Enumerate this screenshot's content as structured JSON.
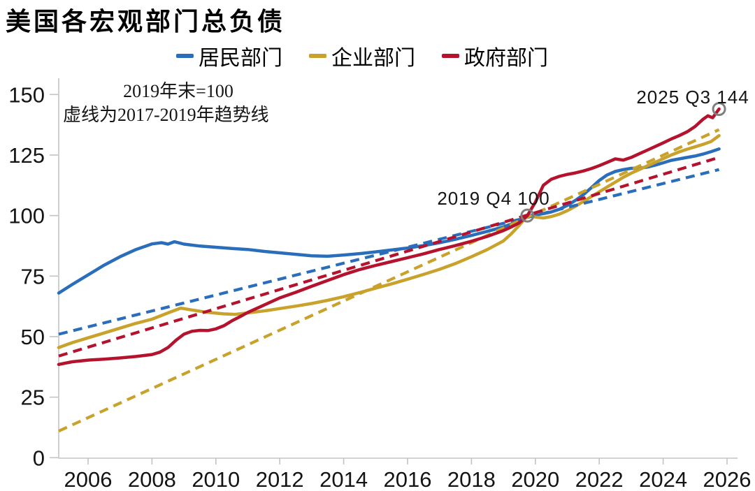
{
  "header": {
    "title": "美国各宏观部门总负债"
  },
  "legend": [
    {
      "label": "居民部门",
      "color": "#2A6EBB"
    },
    {
      "label": "企业部门",
      "color": "#C9A22B"
    },
    {
      "label": "政府部门",
      "color": "#B5122E"
    }
  ],
  "annotations": {
    "note_line1": "2019年末=100",
    "note_line2": "虚线为2017-2019年趋势线",
    "point_2019": "2019 Q4 100",
    "point_2025": "2025 Q3 144"
  },
  "chart_data": {
    "type": "line",
    "title": "美国各宏观部门总负债",
    "subtitle_notes": [
      "2019年末=100",
      "虚线为2017-2019年趋势线"
    ],
    "x_axis": {
      "ticks": [
        2006,
        2008,
        2010,
        2012,
        2014,
        2016,
        2018,
        2020,
        2022,
        2024,
        2026
      ],
      "range": [
        2005.08,
        2026.33
      ],
      "grid": false
    },
    "y_axis": {
      "ticks": [
        0,
        25,
        50,
        75,
        100,
        125,
        150
      ],
      "range": [
        0,
        150
      ],
      "grid": false
    },
    "legend_position": "top",
    "series": [
      {
        "name": "居民部门",
        "color": "#2A6EBB",
        "style": "solid",
        "points": [
          [
            2005.08,
            68
          ],
          [
            2005.5,
            71.5
          ],
          [
            2006,
            75.5
          ],
          [
            2006.5,
            79.5
          ],
          [
            2007,
            83
          ],
          [
            2007.5,
            86
          ],
          [
            2008,
            88.3
          ],
          [
            2008.3,
            88.8
          ],
          [
            2008.5,
            88.2
          ],
          [
            2008.7,
            89.2
          ],
          [
            2009,
            88.2
          ],
          [
            2009.5,
            87.4
          ],
          [
            2010,
            86.9
          ],
          [
            2010.5,
            86.4
          ],
          [
            2011,
            86
          ],
          [
            2011.5,
            85.2
          ],
          [
            2012,
            84.6
          ],
          [
            2012.5,
            84
          ],
          [
            2013,
            83.4
          ],
          [
            2013.5,
            83.2
          ],
          [
            2014,
            83.7
          ],
          [
            2014.5,
            84.3
          ],
          [
            2015,
            85
          ],
          [
            2015.5,
            85.8
          ],
          [
            2016,
            86.6
          ],
          [
            2016.5,
            87.6
          ],
          [
            2017,
            88.8
          ],
          [
            2017.5,
            90.2
          ],
          [
            2018,
            91.8
          ],
          [
            2018.5,
            93.5
          ],
          [
            2019,
            95.3
          ],
          [
            2019.5,
            97.8
          ],
          [
            2019.75,
            100
          ],
          [
            2020,
            100.3
          ],
          [
            2020.25,
            100.8
          ],
          [
            2020.5,
            101.5
          ],
          [
            2020.75,
            102.6
          ],
          [
            2021,
            104.2
          ],
          [
            2021.25,
            106.2
          ],
          [
            2021.5,
            108.6
          ],
          [
            2021.75,
            111.5
          ],
          [
            2022,
            114.5
          ],
          [
            2022.25,
            116.8
          ],
          [
            2022.5,
            118.2
          ],
          [
            2022.75,
            119
          ],
          [
            2023,
            119.5
          ],
          [
            2023.25,
            119.6
          ],
          [
            2023.5,
            120
          ],
          [
            2023.75,
            120.8
          ],
          [
            2024,
            121.8
          ],
          [
            2024.25,
            122.8
          ],
          [
            2024.5,
            123.4
          ],
          [
            2024.75,
            124
          ],
          [
            2025,
            124.6
          ],
          [
            2025.25,
            125.4
          ],
          [
            2025.5,
            126.4
          ],
          [
            2025.75,
            127.5
          ]
        ]
      },
      {
        "name": "企业部门",
        "color": "#C9A22B",
        "style": "solid",
        "points": [
          [
            2005.08,
            45.5
          ],
          [
            2005.5,
            47.5
          ],
          [
            2006,
            49.5
          ],
          [
            2006.5,
            51.5
          ],
          [
            2007,
            53.5
          ],
          [
            2007.5,
            55.5
          ],
          [
            2008,
            57.2
          ],
          [
            2008.5,
            59.8
          ],
          [
            2008.9,
            61.8
          ],
          [
            2009.25,
            61
          ],
          [
            2009.75,
            60
          ],
          [
            2010.25,
            59.4
          ],
          [
            2010.6,
            59.2
          ],
          [
            2011,
            59.8
          ],
          [
            2011.5,
            60.6
          ],
          [
            2012,
            61.6
          ],
          [
            2012.5,
            62.6
          ],
          [
            2013,
            63.7
          ],
          [
            2013.5,
            65
          ],
          [
            2014,
            66.5
          ],
          [
            2014.5,
            68.2
          ],
          [
            2015,
            70
          ],
          [
            2015.5,
            71.8
          ],
          [
            2016,
            73.7
          ],
          [
            2016.5,
            75.7
          ],
          [
            2017,
            77.8
          ],
          [
            2017.5,
            80.2
          ],
          [
            2018,
            83
          ],
          [
            2018.5,
            86
          ],
          [
            2019,
            89.5
          ],
          [
            2019.25,
            92.5
          ],
          [
            2019.5,
            96
          ],
          [
            2019.75,
            100
          ],
          [
            2020,
            99.4
          ],
          [
            2020.25,
            99
          ],
          [
            2020.5,
            99.6
          ],
          [
            2020.75,
            100.6
          ],
          [
            2021,
            102
          ],
          [
            2021.25,
            103.8
          ],
          [
            2021.5,
            105.8
          ],
          [
            2021.75,
            107.8
          ],
          [
            2022,
            109.8
          ],
          [
            2022.25,
            111.8
          ],
          [
            2022.5,
            113.8
          ],
          [
            2022.75,
            115.8
          ],
          [
            2023,
            117.5
          ],
          [
            2023.25,
            119
          ],
          [
            2023.5,
            120.5
          ],
          [
            2023.75,
            122
          ],
          [
            2024,
            123.5
          ],
          [
            2024.25,
            125
          ],
          [
            2024.5,
            126.3
          ],
          [
            2024.75,
            127.4
          ],
          [
            2025,
            128.4
          ],
          [
            2025.25,
            129.4
          ],
          [
            2025.5,
            130.6
          ],
          [
            2025.75,
            133
          ]
        ]
      },
      {
        "name": "政府部门",
        "color": "#B5122E",
        "style": "solid",
        "points": [
          [
            2005.08,
            38.5
          ],
          [
            2005.5,
            39.6
          ],
          [
            2006,
            40.3
          ],
          [
            2006.5,
            40.7
          ],
          [
            2007,
            41.2
          ],
          [
            2007.5,
            41.8
          ],
          [
            2008,
            42.6
          ],
          [
            2008.25,
            43.6
          ],
          [
            2008.5,
            45.5
          ],
          [
            2008.75,
            48.5
          ],
          [
            2009,
            51
          ],
          [
            2009.25,
            52.2
          ],
          [
            2009.5,
            52.6
          ],
          [
            2009.75,
            52.5
          ],
          [
            2010,
            53.2
          ],
          [
            2010.25,
            54.5
          ],
          [
            2010.5,
            56.5
          ],
          [
            2010.75,
            58.2
          ],
          [
            2011,
            60
          ],
          [
            2011.5,
            63
          ],
          [
            2012,
            66
          ],
          [
            2012.5,
            68.3
          ],
          [
            2013,
            70.8
          ],
          [
            2013.5,
            73.2
          ],
          [
            2014,
            75.6
          ],
          [
            2014.5,
            77.7
          ],
          [
            2015,
            79.4
          ],
          [
            2015.5,
            81
          ],
          [
            2016,
            82.6
          ],
          [
            2016.5,
            84.2
          ],
          [
            2017,
            86
          ],
          [
            2017.5,
            87.6
          ],
          [
            2018,
            89.4
          ],
          [
            2018.5,
            91.4
          ],
          [
            2019,
            93.8
          ],
          [
            2019.25,
            95.3
          ],
          [
            2019.5,
            97
          ],
          [
            2019.75,
            100
          ],
          [
            2020,
            105.5
          ],
          [
            2020.25,
            112.5
          ],
          [
            2020.5,
            115
          ],
          [
            2020.75,
            116.2
          ],
          [
            2021,
            117
          ],
          [
            2021.25,
            117.6
          ],
          [
            2021.5,
            118.4
          ],
          [
            2021.75,
            119.4
          ],
          [
            2022,
            120.6
          ],
          [
            2022.25,
            122
          ],
          [
            2022.5,
            123.4
          ],
          [
            2022.75,
            122.9
          ],
          [
            2023,
            124
          ],
          [
            2023.25,
            125.5
          ],
          [
            2023.5,
            127
          ],
          [
            2023.75,
            128.5
          ],
          [
            2024,
            130
          ],
          [
            2024.25,
            131.6
          ],
          [
            2024.5,
            133
          ],
          [
            2024.75,
            134.6
          ],
          [
            2025,
            136.8
          ],
          [
            2025.25,
            139.8
          ],
          [
            2025.4,
            141.2
          ],
          [
            2025.55,
            140.4
          ],
          [
            2025.75,
            144
          ]
        ]
      },
      {
        "name": "居民部门趋势线",
        "color": "#2A6EBB",
        "style": "dashed",
        "points": [
          [
            2005.08,
            51
          ],
          [
            2025.75,
            119
          ]
        ]
      },
      {
        "name": "企业部门趋势线",
        "color": "#C9A22B",
        "style": "dashed",
        "points": [
          [
            2005.08,
            11
          ],
          [
            2025.75,
            135.5
          ]
        ]
      },
      {
        "name": "政府部门趋势线",
        "color": "#B5122E",
        "style": "dashed",
        "points": [
          [
            2005.08,
            42
          ],
          [
            2025.75,
            124
          ]
        ]
      }
    ],
    "markers": [
      {
        "x": 2019.75,
        "y": 100,
        "label": "2019 Q4 100"
      },
      {
        "x": 2025.75,
        "y": 144,
        "label": "2025 Q3 144"
      }
    ]
  }
}
